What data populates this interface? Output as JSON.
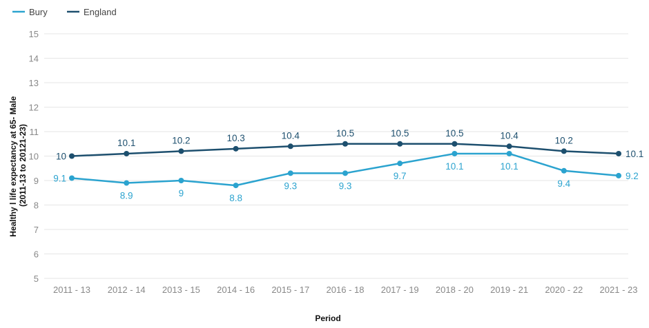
{
  "chart_data": {
    "type": "line",
    "categories": [
      "2011 - 13",
      "2012 - 14",
      "2013 - 15",
      "2014 - 16",
      "2015 - 17",
      "2016 - 18",
      "2017 - 19",
      "2018 - 20",
      "2019 - 21",
      "2020 - 22",
      "2021 - 23"
    ],
    "series": [
      {
        "name": "Bury",
        "color": "#2ba3cf",
        "values": [
          9.1,
          8.9,
          9.0,
          8.8,
          9.3,
          9.3,
          9.7,
          10.1,
          10.1,
          9.4,
          9.2
        ],
        "labels": [
          "9.1",
          "8.9",
          "9",
          "8.8",
          "9.3",
          "9.3",
          "9.7",
          "10.1",
          "10.1",
          "9.4",
          "9.2"
        ]
      },
      {
        "name": "England",
        "color": "#1d4f6e",
        "values": [
          10.0,
          10.1,
          10.2,
          10.3,
          10.4,
          10.5,
          10.5,
          10.5,
          10.4,
          10.2,
          10.1
        ],
        "labels": [
          "10",
          "10.1",
          "10.2",
          "10.3",
          "10.4",
          "10.5",
          "10.5",
          "10.5",
          "10.4",
          "10.2",
          "10.1"
        ]
      }
    ],
    "xlabel": "Period",
    "ylabel_lines": [
      "Healthy l life expectancy at 65- Male",
      "(2011-13 to 20121-23)"
    ],
    "ylim": [
      5,
      15
    ],
    "yticks": [
      "5",
      "6",
      "7",
      "8",
      "9",
      "10",
      "11",
      "12",
      "13",
      "14",
      "15"
    ],
    "grid": true,
    "legend_position": "top-left"
  }
}
